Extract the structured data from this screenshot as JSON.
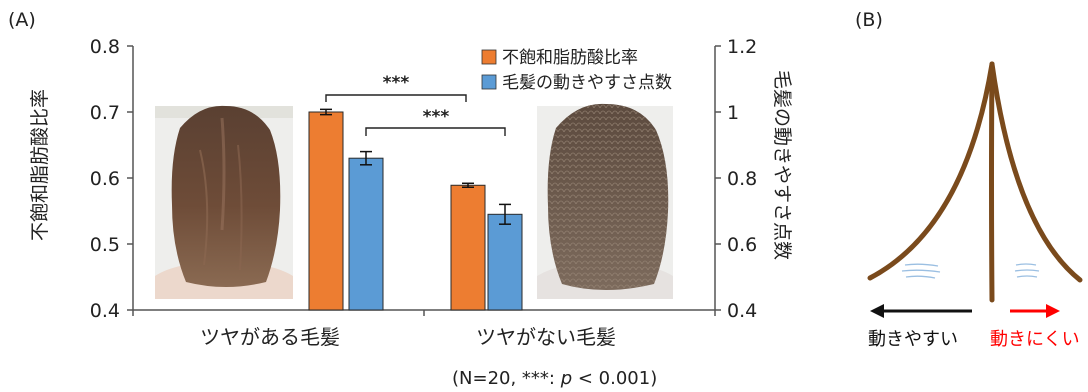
{
  "panels": {
    "a_label": "(A)",
    "b_label": "(B)"
  },
  "chart_data": {
    "type": "bar",
    "categories": [
      "ツヤがある毛髪",
      "ツヤがない毛髪"
    ],
    "series": [
      {
        "name": "不飽和脂肪酸比率",
        "axis": "left",
        "color": "#ed7d31",
        "values": [
          0.7,
          0.589
        ],
        "errors": [
          0.004,
          0.003
        ]
      },
      {
        "name": "毛髪の動きやすさ点数",
        "axis": "right",
        "color": "#5b9bd5",
        "values": [
          0.86,
          0.69
        ],
        "errors": [
          0.02,
          0.03
        ]
      }
    ],
    "ylabel": "不飽和脂肪酸比率",
    "ylabel_right": "毛髪の動きやすさ点数",
    "ylim": [
      0.4,
      0.8
    ],
    "ylim_right": [
      0.4,
      1.2
    ],
    "yticks": [
      "0.4",
      "0.5",
      "0.6",
      "0.7",
      "0.8"
    ],
    "yticks_right": [
      "0.4",
      "0.6",
      "0.8",
      "1",
      "1.2"
    ],
    "significance": [
      "***",
      "***"
    ],
    "legend_position": "top-right",
    "grid": false
  },
  "footnote": {
    "prefix": "(N=20, ***: ",
    "p": "p",
    "suffix": " < 0.001)"
  },
  "diagram_b": {
    "left_label": "動きやすい",
    "right_label": "動きにくい",
    "left_color": "#111111",
    "right_color": "#ff0000",
    "hair_color": "#7a4a1c"
  }
}
